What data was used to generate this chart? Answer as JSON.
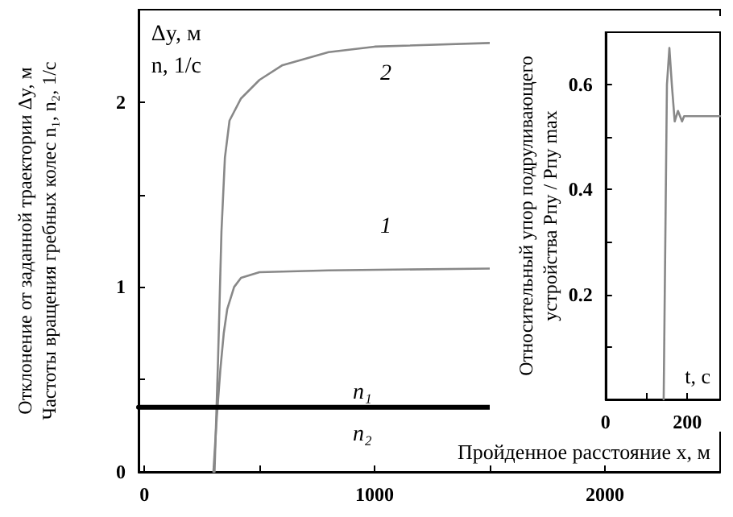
{
  "chart_data": [
    {
      "type": "line",
      "xlabel": "Пройденное расстояние x, м",
      "ylabel": "Отклонение от заданной траектории Δy, м\nЧастоты вращения гребных колес n₁, n₂, 1/с",
      "xlim": [
        -25,
        2500
      ],
      "xticks": [
        0,
        {
          "value": 500,
          "label": null
        },
        1000,
        {
          "value": 1500,
          "label": null
        },
        2000
      ],
      "ylim": [
        0,
        2.5
      ],
      "yticks": [
        0,
        {
          "value": 0.5,
          "label": null
        },
        1,
        {
          "value": 1.5,
          "label": null
        },
        2
      ],
      "grid": false,
      "marker": "none",
      "line_style": "solid",
      "series": [
        {
          "color": "#888888",
          "x": [
            305,
            320,
            335,
            350,
            370,
            420,
            500,
            600,
            800,
            1000,
            1500
          ],
          "values": [
            0,
            0.6,
            1.3,
            1.7,
            1.9,
            2.02,
            2.12,
            2.2,
            2.27,
            2.3,
            2.32
          ]
        },
        {
          "color": "#888888",
          "x": [
            300,
            315,
            330,
            345,
            360,
            390,
            420,
            500,
            800,
            1500
          ],
          "values": [
            0,
            0.3,
            0.55,
            0.75,
            0.88,
            1.0,
            1.05,
            1.08,
            1.09,
            1.1
          ]
        },
        {
          "color": "#000000",
          "x": [
            -25,
            1500
          ],
          "values": [
            0.35,
            0.35
          ]
        }
      ],
      "annotations": [
        "Δy, м",
        "n, 1/с",
        "2",
        "1",
        "n₁",
        "n₂"
      ]
    },
    {
      "type": "line",
      "xlabel": "t, с",
      "ylabel": "Относительный упор подруливающего\nустройства Pпу / Pпу max",
      "xlim": [
        0,
        280
      ],
      "xticks": [
        0,
        {
          "value": 100,
          "label": null
        },
        200
      ],
      "ylim": [
        0,
        0.7
      ],
      "yticks": [
        {
          "value": 0.1,
          "label": null
        },
        0.2,
        {
          "value": 0.3,
          "label": null
        },
        0.4,
        {
          "value": 0.5,
          "label": null
        },
        0.6
      ],
      "grid": false,
      "marker": "none",
      "line_style": "solid",
      "series": [
        {
          "color": "#888888",
          "x": [
            142,
            150,
            156,
            162,
            169,
            173,
            177,
            182,
            187,
            192,
            197,
            210,
            280
          ],
          "values": [
            0,
            0.6,
            0.67,
            0.6,
            0.53,
            0.54,
            0.55,
            0.54,
            0.53,
            0.54,
            0.54,
            0.54,
            0.54
          ]
        }
      ]
    }
  ]
}
